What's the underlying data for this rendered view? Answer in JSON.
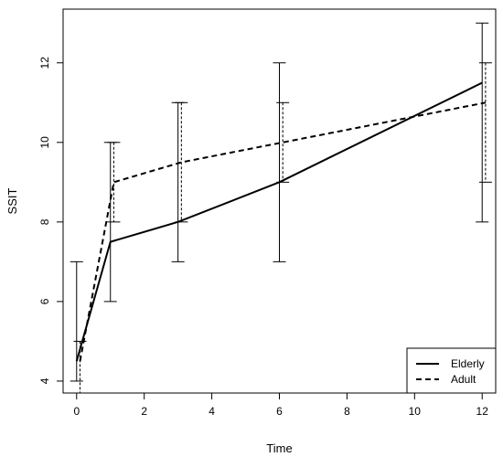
{
  "chart_data": {
    "type": "line",
    "title": "",
    "xlabel": "Time",
    "ylabel": "SSIT",
    "xlim": [
      -0.4,
      12.4
    ],
    "ylim": [
      3.7,
      13.35
    ],
    "x_ticks": [
      0,
      2,
      4,
      6,
      8,
      10,
      12
    ],
    "y_ticks": [
      4,
      6,
      8,
      10,
      12
    ],
    "grid": false,
    "legend_position": "bottom-right",
    "series": [
      {
        "name": "Elderly",
        "line_style": "solid",
        "color": "#000000",
        "points": [
          {
            "x": 0,
            "y": 4.5,
            "lower": 4,
            "upper": 7
          },
          {
            "x": 1,
            "y": 7.5,
            "lower": 6,
            "upper": 10
          },
          {
            "x": 3,
            "y": 8,
            "lower": 7,
            "upper": 11
          },
          {
            "x": 6,
            "y": 9,
            "lower": 7,
            "upper": 12
          },
          {
            "x": 12,
            "y": 11.5,
            "lower": 8,
            "upper": 13
          }
        ]
      },
      {
        "name": "Adult",
        "line_style": "dashed",
        "color": "#000000",
        "points": [
          {
            "x": 0.1,
            "y": 4.5,
            "lower": 3.7,
            "upper": 5
          },
          {
            "x": 1.1,
            "y": 9,
            "lower": 8,
            "upper": 10
          },
          {
            "x": 3.1,
            "y": 9.5,
            "lower": 8,
            "upper": 11
          },
          {
            "x": 6.1,
            "y": 10,
            "lower": 9,
            "upper": 11
          },
          {
            "x": 12.1,
            "y": 11,
            "lower": 9,
            "upper": 12
          }
        ]
      }
    ]
  }
}
